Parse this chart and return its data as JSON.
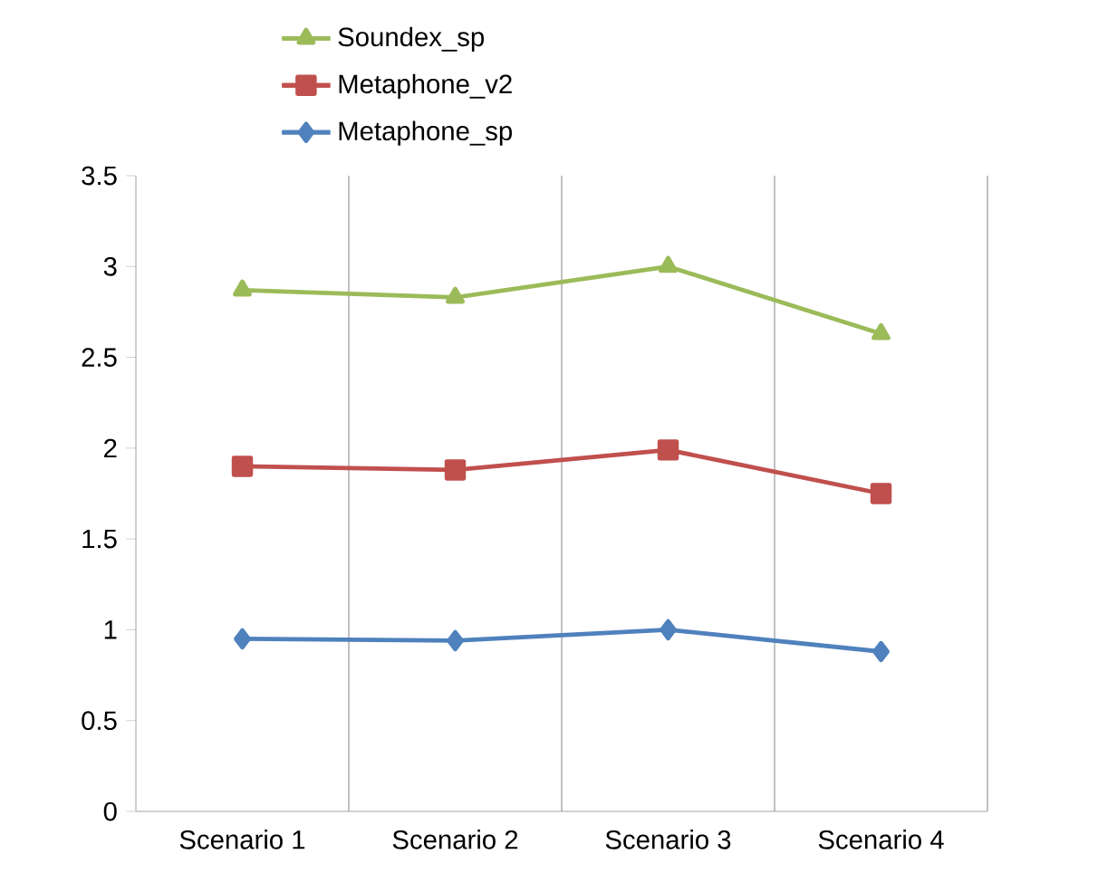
{
  "chart_data": {
    "type": "line",
    "categories": [
      "Scenario 1",
      "Scenario 2",
      "Scenario 3",
      "Scenario 4"
    ],
    "series": [
      {
        "name": "Metaphone_sp",
        "color": "#4f81bd",
        "marker": "diamond",
        "values": [
          0.95,
          0.94,
          1.0,
          0.88
        ]
      },
      {
        "name": "Metaphone_v2",
        "color": "#c0504d",
        "marker": "square",
        "values": [
          1.9,
          1.88,
          1.99,
          1.75
        ]
      },
      {
        "name": "Soundex_sp",
        "color": "#9bbb59",
        "marker": "triangle",
        "values": [
          2.87,
          2.83,
          3.0,
          2.63
        ]
      }
    ],
    "ylim": [
      0,
      3.5
    ],
    "yticks": [
      0,
      0.5,
      1,
      1.5,
      2,
      2.5,
      3,
      3.5
    ],
    "grid": "x",
    "legend": "top",
    "line_style": "solid"
  }
}
